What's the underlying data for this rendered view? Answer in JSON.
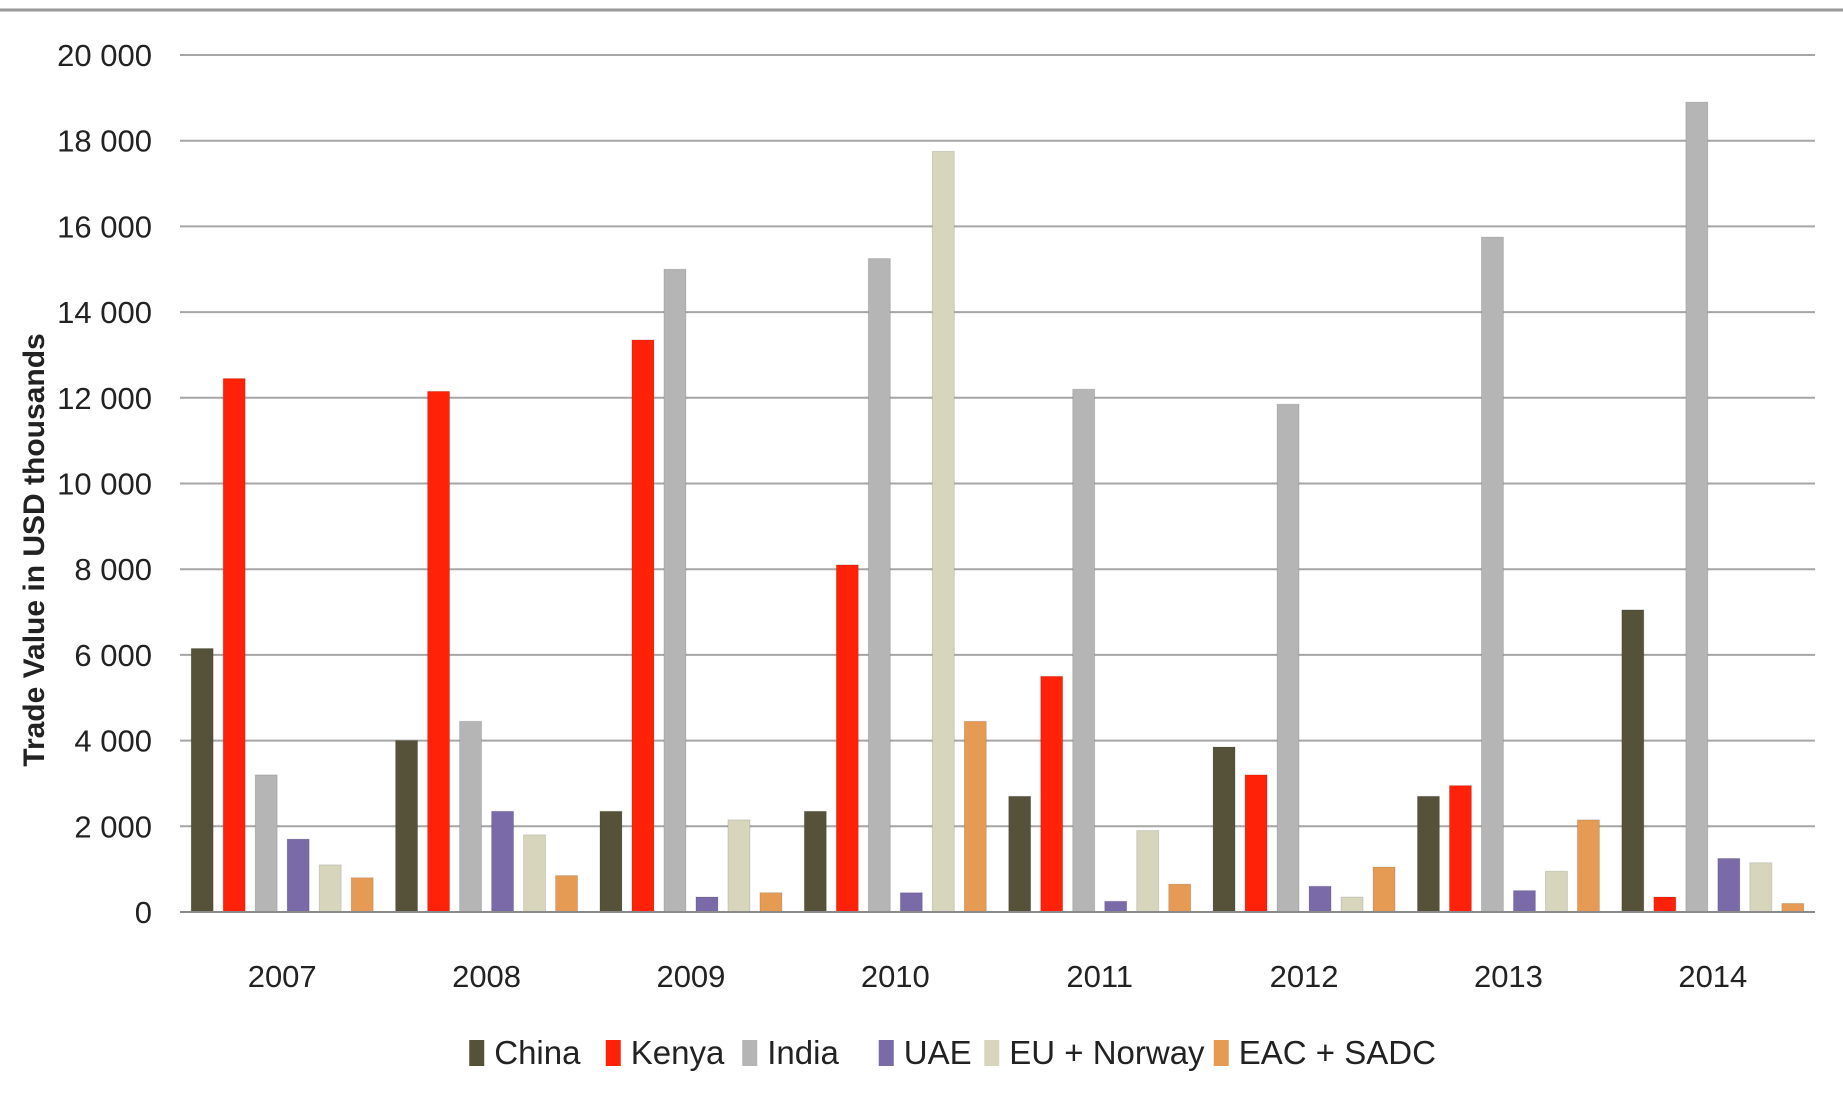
{
  "chart_data": {
    "type": "bar",
    "title": "",
    "xlabel": "",
    "ylabel": "Trade Value in USD thousands",
    "ylim": [
      0,
      20000
    ],
    "yticks": [
      "0",
      "2 000",
      "4 000",
      "6 000",
      "8 000",
      "10 000",
      "12 000",
      "14 000",
      "16 000",
      "18 000",
      "20 000"
    ],
    "categories": [
      "2007",
      "2008",
      "2009",
      "2010",
      "2011",
      "2012",
      "2013",
      "2014"
    ],
    "grid": true,
    "legend_position": "bottom",
    "series": [
      {
        "name": "China",
        "color": "#555239",
        "values": [
          6150,
          4000,
          2350,
          2350,
          2700,
          3850,
          2700,
          7050
        ]
      },
      {
        "name": "Kenya",
        "color": "#ff2209",
        "values": [
          12450,
          12150,
          13350,
          8100,
          5500,
          3200,
          2950,
          350
        ]
      },
      {
        "name": "India",
        "color": "#b5b5b5",
        "values": [
          3200,
          4450,
          15000,
          15250,
          12200,
          11850,
          15750,
          18900
        ]
      },
      {
        "name": "UAE",
        "color": "#7a6aa8",
        "values": [
          1700,
          2350,
          350,
          450,
          250,
          600,
          500,
          1250
        ]
      },
      {
        "name": "EU + Norway",
        "color": "#d7d6bd",
        "values": [
          1100,
          1800,
          2150,
          17750,
          1900,
          350,
          950,
          1150
        ]
      },
      {
        "name": "EAC + SADC",
        "color": "#e69b55",
        "values": [
          800,
          850,
          450,
          4450,
          650,
          1050,
          2150,
          200
        ]
      }
    ]
  }
}
